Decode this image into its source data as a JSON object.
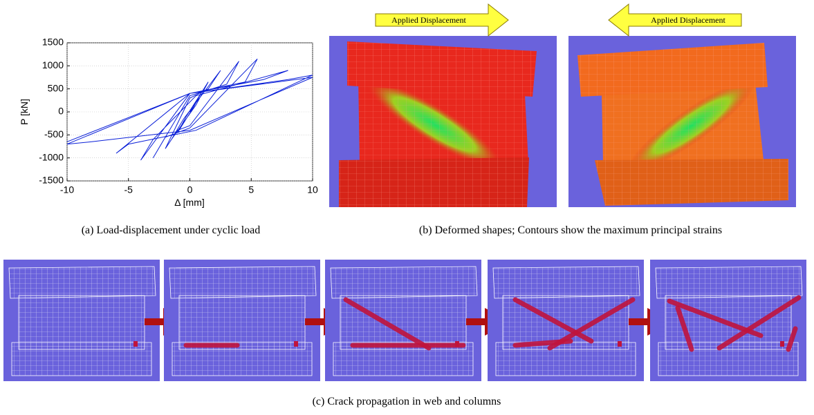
{
  "chart_data": {
    "type": "line",
    "x_label": "Δ [mm]",
    "y_label": "P [kN]",
    "x": [
      0,
      1,
      0.3,
      -1,
      -0.3,
      1.5,
      0.5,
      -1.5,
      -0.5,
      2.5,
      1.5,
      0,
      -2,
      -1,
      0,
      4,
      3,
      0,
      -3,
      -2,
      0,
      5.5,
      4.5,
      0,
      -4,
      -3,
      0.5,
      8,
      6,
      0,
      -6,
      -5,
      0.5,
      10,
      8,
      0,
      -10,
      -8,
      0,
      10,
      0,
      -10
    ],
    "values": [
      0,
      450,
      100,
      -450,
      -100,
      650,
      150,
      -600,
      -150,
      900,
      500,
      300,
      -800,
      -400,
      -300,
      1100,
      600,
      350,
      -1000,
      -550,
      -350,
      1150,
      650,
      400,
      -1050,
      -600,
      350,
      900,
      700,
      400,
      -900,
      -700,
      -400,
      800,
      700,
      400,
      -700,
      -650,
      -400,
      750,
      400,
      -650
    ],
    "color": "#0a1fd8",
    "xlim": [
      -10,
      10
    ],
    "xticks": [
      -10,
      -5,
      0,
      5,
      10
    ],
    "ylim": [
      -1500,
      1500
    ],
    "yticks": [
      -1500,
      -1000,
      -500,
      0,
      500,
      1000,
      1500
    ],
    "grid": true
  },
  "subfigure_a": {
    "caption": "(a)  Load-displacement under cyclic load"
  },
  "subfigure_b": {
    "arrows": [
      "Applied Displacement",
      "Applied Displacement"
    ],
    "caption": "(b)  Deformed shapes; Contours show the maximum principal strains"
  },
  "subfigure_c": {
    "caption": "(c)  Crack propagation in web and columns"
  }
}
